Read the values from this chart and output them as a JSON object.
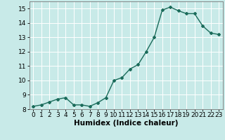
{
  "x": [
    0,
    1,
    2,
    3,
    4,
    5,
    6,
    7,
    8,
    9,
    10,
    11,
    12,
    13,
    14,
    15,
    16,
    17,
    18,
    19,
    20,
    21,
    22,
    23
  ],
  "y": [
    8.2,
    8.3,
    8.5,
    8.7,
    8.8,
    8.3,
    8.3,
    8.2,
    8.45,
    8.8,
    10.0,
    10.2,
    10.8,
    11.1,
    12.0,
    13.0,
    14.9,
    15.1,
    14.85,
    14.65,
    14.65,
    13.8,
    13.3,
    13.2
  ],
  "xlabel": "Humidex (Indice chaleur)",
  "ylim": [
    8,
    15.5
  ],
  "xlim": [
    -0.5,
    23.5
  ],
  "yticks": [
    8,
    9,
    10,
    11,
    12,
    13,
    14,
    15
  ],
  "xticks": [
    0,
    1,
    2,
    3,
    4,
    5,
    6,
    7,
    8,
    9,
    10,
    11,
    12,
    13,
    14,
    15,
    16,
    17,
    18,
    19,
    20,
    21,
    22,
    23
  ],
  "line_color": "#1a6b5a",
  "marker": "D",
  "marker_size": 2.0,
  "bg_color": "#c8eae8",
  "grid_color": "#ffffff",
  "tick_label_fontsize": 6.5,
  "xlabel_fontsize": 7.5,
  "line_width": 1.0
}
